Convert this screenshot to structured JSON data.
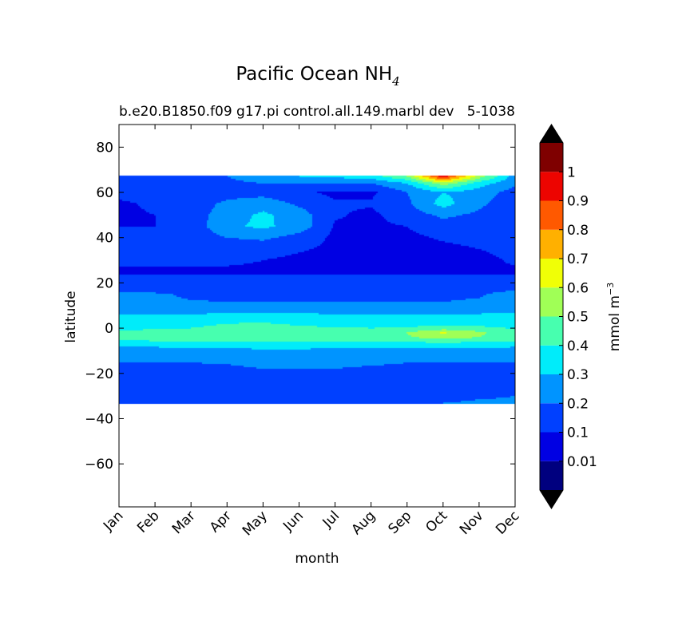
{
  "chart_data": {
    "type": "heatmap",
    "title": "Pacific Ocean NH",
    "title_subscript": "4",
    "subtitle_left": "b.e20.B1850.f09 g17.pi control.all.149.marbl dev",
    "subtitle_right": "5-1038",
    "xlabel": "month",
    "ylabel": "latitude",
    "x_categories": [
      "Jan",
      "Feb",
      "Mar",
      "Apr",
      "May",
      "Jun",
      "Jul",
      "Aug",
      "Sep",
      "Oct",
      "Nov",
      "Dec"
    ],
    "y_ticks": [
      {
        "v": 80,
        "label": "80"
      },
      {
        "v": 60,
        "label": "60"
      },
      {
        "v": 40,
        "label": "40"
      },
      {
        "v": 20,
        "label": "20"
      },
      {
        "v": 0,
        "label": "0"
      },
      {
        "v": -20,
        "label": "−20"
      },
      {
        "v": -40,
        "label": "−40"
      },
      {
        "v": -60,
        "label": "−60"
      }
    ],
    "ylim": [
      -79,
      90
    ],
    "data_lat_range": [
      -33.5,
      67.5
    ],
    "colorbar": {
      "label": "mmol m",
      "label_superscript": "−3",
      "extend": "both",
      "levels": [
        0,
        0.01,
        0.1,
        0.2,
        0.3,
        0.4,
        0.5,
        0.6,
        0.7,
        0.8,
        0.9,
        1,
        1.1
      ],
      "tick_labels": [
        {
          "v": 0.01,
          "label": "0.01"
        },
        {
          "v": 0.1,
          "label": "0.1"
        },
        {
          "v": 0.2,
          "label": "0.2"
        },
        {
          "v": 0.3,
          "label": "0.3"
        },
        {
          "v": 0.4,
          "label": "0.4"
        },
        {
          "v": 0.5,
          "label": "0.5"
        },
        {
          "v": 0.6,
          "label": "0.6"
        },
        {
          "v": 0.7,
          "label": "0.7"
        },
        {
          "v": 0.8,
          "label": "0.8"
        },
        {
          "v": 0.9,
          "label": "0.9"
        },
        {
          "v": 1,
          "label": "1"
        }
      ],
      "colors": [
        "#00007f",
        "#0000e3",
        "#0040ff",
        "#0094ff",
        "#00ecfa",
        "#47ffaf",
        "#a0ff56",
        "#f0ff06",
        "#ffb000",
        "#ff5900",
        "#ed0400",
        "#7f0000"
      ],
      "under_color": "#000000",
      "over_color": "#000000"
    },
    "field": {
      "lat": [
        67,
        64,
        60,
        55,
        50,
        45,
        40,
        35,
        30,
        25,
        20,
        15,
        10,
        5,
        2,
        0,
        -2,
        -4,
        -6,
        -8,
        -10,
        -14,
        -18,
        -22,
        -26,
        -30,
        -33
      ],
      "values": [
        [
          0.15,
          0.15,
          0.16,
          0.2,
          0.25,
          0.3,
          0.32,
          0.35,
          0.5,
          0.95,
          0.55,
          0.25
        ],
        [
          0.14,
          0.14,
          0.15,
          0.18,
          0.2,
          0.2,
          0.2,
          0.2,
          0.3,
          0.55,
          0.35,
          0.22
        ],
        [
          0.12,
          0.12,
          0.14,
          0.16,
          0.16,
          0.12,
          0.08,
          0.08,
          0.2,
          0.3,
          0.25,
          0.16
        ],
        [
          0.09,
          0.11,
          0.15,
          0.22,
          0.26,
          0.18,
          0.11,
          0.11,
          0.18,
          0.34,
          0.22,
          0.14
        ],
        [
          0.09,
          0.1,
          0.15,
          0.25,
          0.32,
          0.25,
          0.11,
          0.08,
          0.15,
          0.22,
          0.18,
          0.12
        ],
        [
          0.1,
          0.1,
          0.14,
          0.28,
          0.32,
          0.26,
          0.09,
          0.08,
          0.1,
          0.16,
          0.15,
          0.12
        ],
        [
          0.11,
          0.11,
          0.13,
          0.2,
          0.22,
          0.16,
          0.08,
          0.07,
          0.08,
          0.11,
          0.13,
          0.12
        ],
        [
          0.12,
          0.12,
          0.12,
          0.13,
          0.14,
          0.11,
          0.08,
          0.07,
          0.07,
          0.08,
          0.1,
          0.12
        ],
        [
          0.11,
          0.11,
          0.11,
          0.11,
          0.1,
          0.08,
          0.07,
          0.07,
          0.07,
          0.07,
          0.08,
          0.11
        ],
        [
          0.09,
          0.09,
          0.09,
          0.09,
          0.09,
          0.09,
          0.09,
          0.09,
          0.09,
          0.09,
          0.09,
          0.09
        ],
        [
          0.12,
          0.12,
          0.12,
          0.12,
          0.12,
          0.12,
          0.12,
          0.12,
          0.12,
          0.12,
          0.12,
          0.12
        ],
        [
          0.22,
          0.21,
          0.19,
          0.18,
          0.18,
          0.18,
          0.18,
          0.18,
          0.18,
          0.18,
          0.19,
          0.24
        ],
        [
          0.22,
          0.21,
          0.21,
          0.21,
          0.21,
          0.21,
          0.21,
          0.21,
          0.21,
          0.21,
          0.22,
          0.24
        ],
        [
          0.32,
          0.32,
          0.33,
          0.34,
          0.34,
          0.34,
          0.33,
          0.33,
          0.33,
          0.33,
          0.33,
          0.33
        ],
        [
          0.35,
          0.35,
          0.37,
          0.4,
          0.41,
          0.38,
          0.35,
          0.35,
          0.36,
          0.37,
          0.36,
          0.35
        ],
        [
          0.38,
          0.39,
          0.4,
          0.43,
          0.44,
          0.43,
          0.41,
          0.4,
          0.41,
          0.45,
          0.43,
          0.39
        ],
        [
          0.42,
          0.43,
          0.44,
          0.46,
          0.47,
          0.46,
          0.45,
          0.46,
          0.5,
          0.61,
          0.52,
          0.43
        ],
        [
          0.44,
          0.45,
          0.45,
          0.46,
          0.47,
          0.46,
          0.45,
          0.46,
          0.49,
          0.55,
          0.5,
          0.45
        ],
        [
          0.38,
          0.39,
          0.39,
          0.4,
          0.41,
          0.4,
          0.39,
          0.4,
          0.41,
          0.42,
          0.41,
          0.4
        ],
        [
          0.31,
          0.31,
          0.32,
          0.32,
          0.33,
          0.33,
          0.32,
          0.32,
          0.32,
          0.32,
          0.32,
          0.31
        ],
        [
          0.26,
          0.26,
          0.27,
          0.28,
          0.28,
          0.28,
          0.28,
          0.27,
          0.27,
          0.27,
          0.26,
          0.26
        ],
        [
          0.21,
          0.21,
          0.21,
          0.21,
          0.22,
          0.22,
          0.22,
          0.22,
          0.21,
          0.21,
          0.21,
          0.21
        ],
        [
          0.17,
          0.18,
          0.18,
          0.19,
          0.2,
          0.2,
          0.2,
          0.19,
          0.18,
          0.17,
          0.17,
          0.17
        ],
        [
          0.15,
          0.15,
          0.15,
          0.16,
          0.16,
          0.16,
          0.16,
          0.15,
          0.15,
          0.14,
          0.14,
          0.15
        ],
        [
          0.13,
          0.13,
          0.14,
          0.14,
          0.14,
          0.14,
          0.14,
          0.14,
          0.14,
          0.13,
          0.14,
          0.16
        ],
        [
          0.14,
          0.14,
          0.15,
          0.15,
          0.15,
          0.15,
          0.15,
          0.15,
          0.16,
          0.17,
          0.19,
          0.2
        ],
        [
          0.16,
          0.16,
          0.17,
          0.17,
          0.17,
          0.17,
          0.17,
          0.17,
          0.18,
          0.2,
          0.21,
          0.21
        ]
      ]
    }
  }
}
